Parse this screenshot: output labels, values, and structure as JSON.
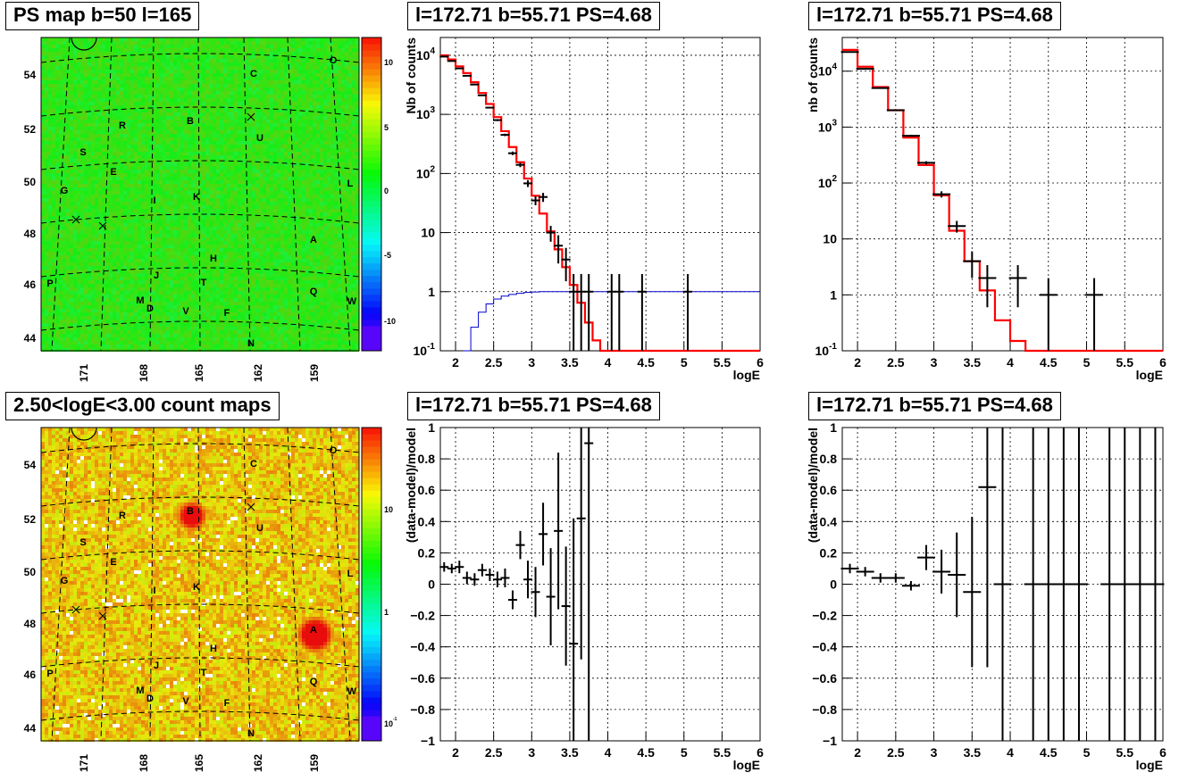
{
  "chart_data": [
    {
      "id": "tl",
      "type": "heatmap",
      "title": "PS map b=50 l=165",
      "mode": "significance",
      "xticks": [
        "171",
        "168",
        "165",
        "162",
        "159"
      ],
      "yticks": [
        "54",
        "52",
        "50",
        "48",
        "46",
        "44"
      ],
      "palette_ticks": [
        "10",
        "5",
        "0",
        "-5",
        "-10"
      ],
      "sources": [
        {
          "label": "C"
        },
        {
          "label": "O"
        },
        {
          "label": "B"
        },
        {
          "label": "R"
        },
        {
          "label": "U"
        },
        {
          "label": "S"
        },
        {
          "label": "E"
        },
        {
          "label": "L"
        },
        {
          "label": "G"
        },
        {
          "label": "I"
        },
        {
          "label": "K"
        },
        {
          "label": "A"
        },
        {
          "label": "H"
        },
        {
          "label": "J"
        },
        {
          "label": "T"
        },
        {
          "label": "P"
        },
        {
          "label": "Q"
        },
        {
          "label": "M"
        },
        {
          "label": "D"
        },
        {
          "label": "V"
        },
        {
          "label": "F"
        },
        {
          "label": "W"
        },
        {
          "label": "N"
        }
      ]
    },
    {
      "id": "tm",
      "type": "line",
      "title": "l=172.71 b=55.71 PS=4.68",
      "xlabel": "logE",
      "ylabel": "Nb of counts",
      "yscale": "log",
      "xlim": [
        1.8,
        6
      ],
      "ylim": [
        0.1,
        20000
      ],
      "xticks": [
        "2",
        "2.5",
        "3",
        "3.5",
        "4",
        "4.5",
        "5",
        "5.5",
        "6"
      ],
      "yticks": [
        "10^4",
        "10^3",
        "10^2",
        "10",
        "1",
        "10^-1"
      ],
      "data_points": [
        {
          "x": 1.85,
          "y": 9500,
          "err": 100
        },
        {
          "x": 1.95,
          "y": 8000,
          "err": 90
        },
        {
          "x": 2.05,
          "y": 6000,
          "err": 80
        },
        {
          "x": 2.15,
          "y": 4500,
          "err": 70
        },
        {
          "x": 2.25,
          "y": 3200,
          "err": 60
        },
        {
          "x": 2.35,
          "y": 2100,
          "err": 50
        },
        {
          "x": 2.45,
          "y": 1300,
          "err": 40
        },
        {
          "x": 2.55,
          "y": 800,
          "err": 30
        },
        {
          "x": 2.65,
          "y": 450,
          "err": 22
        },
        {
          "x": 2.75,
          "y": 220,
          "err": 15
        },
        {
          "x": 2.85,
          "y": 140,
          "err": 12
        },
        {
          "x": 2.95,
          "y": 68,
          "err": 9
        },
        {
          "x": 3.05,
          "y": 35,
          "err": 6
        },
        {
          "x": 3.15,
          "y": 40,
          "err": 7
        },
        {
          "x": 3.25,
          "y": 10,
          "err": 3
        },
        {
          "x": 3.35,
          "y": 6,
          "err": 3
        },
        {
          "x": 3.45,
          "y": 3.5,
          "err": 2
        },
        {
          "x": 3.55,
          "y": 1,
          "err": 0.99
        },
        {
          "x": 3.65,
          "y": 1,
          "err": 0.99
        },
        {
          "x": 3.75,
          "y": 1,
          "err": 0.99
        },
        {
          "x": 4.05,
          "y": 1,
          "err": 0.99
        },
        {
          "x": 4.15,
          "y": 1,
          "err": 0.99
        },
        {
          "x": 4.45,
          "y": 1,
          "err": 0.99
        },
        {
          "x": 5.05,
          "y": 1,
          "err": 0.99
        }
      ],
      "model": [
        [
          1.8,
          10000
        ],
        [
          1.9,
          8500
        ],
        [
          2.0,
          6500
        ],
        [
          2.1,
          5000
        ],
        [
          2.2,
          3500
        ],
        [
          2.3,
          2300
        ],
        [
          2.4,
          1500
        ],
        [
          2.5,
          900
        ],
        [
          2.6,
          520
        ],
        [
          2.7,
          280
        ],
        [
          2.8,
          155
        ],
        [
          2.9,
          82
        ],
        [
          3.0,
          42
        ],
        [
          3.1,
          21
        ],
        [
          3.2,
          10.5
        ],
        [
          3.3,
          5.2
        ],
        [
          3.4,
          2.6
        ],
        [
          3.5,
          1.3
        ],
        [
          3.6,
          0.65
        ],
        [
          3.7,
          0.3
        ],
        [
          3.8,
          0.15
        ],
        [
          3.9,
          0.1
        ],
        [
          6.0,
          0.1
        ]
      ],
      "efficiency": [
        [
          2.1,
          0.1
        ],
        [
          2.2,
          0.25
        ],
        [
          2.3,
          0.45
        ],
        [
          2.4,
          0.62
        ],
        [
          2.5,
          0.75
        ],
        [
          2.6,
          0.84
        ],
        [
          2.7,
          0.9
        ],
        [
          2.8,
          0.94
        ],
        [
          2.9,
          0.97
        ],
        [
          3.0,
          0.99
        ],
        [
          3.1,
          1.0
        ],
        [
          6.0,
          1.0
        ]
      ]
    },
    {
      "id": "tr",
      "type": "line",
      "title": "l=172.71 b=55.71 PS=4.68",
      "xlabel": "logE",
      "ylabel": "nb of counts",
      "yscale": "log",
      "xlim": [
        1.8,
        6
      ],
      "ylim": [
        0.1,
        40000
      ],
      "xticks": [
        "2",
        "2.5",
        "3",
        "3.5",
        "4",
        "4.5",
        "5",
        "5.5",
        "6"
      ],
      "yticks": [
        "10^4",
        "10^3",
        "10^2",
        "10",
        "1",
        "10^-1"
      ],
      "data_points": [
        {
          "x": 1.9,
          "y": 22000,
          "err": 150
        },
        {
          "x": 2.1,
          "y": 11000,
          "err": 100
        },
        {
          "x": 2.3,
          "y": 5000,
          "err": 70
        },
        {
          "x": 2.5,
          "y": 2000,
          "err": 45
        },
        {
          "x": 2.7,
          "y": 700,
          "err": 26
        },
        {
          "x": 2.9,
          "y": 230,
          "err": 15
        },
        {
          "x": 3.1,
          "y": 63,
          "err": 8
        },
        {
          "x": 3.3,
          "y": 17,
          "err": 4
        },
        {
          "x": 3.5,
          "y": 4,
          "err": 2
        },
        {
          "x": 3.7,
          "y": 2,
          "err": 1.4
        },
        {
          "x": 4.1,
          "y": 2,
          "err": 1.4
        },
        {
          "x": 4.5,
          "y": 1,
          "err": 0.99
        },
        {
          "x": 5.1,
          "y": 1,
          "err": 0.99
        }
      ],
      "model": [
        [
          1.8,
          24000
        ],
        [
          2.0,
          12000
        ],
        [
          2.2,
          5200
        ],
        [
          2.4,
          2000
        ],
        [
          2.6,
          650
        ],
        [
          2.8,
          210
        ],
        [
          3.0,
          60
        ],
        [
          3.2,
          14
        ],
        [
          3.4,
          4
        ],
        [
          3.6,
          1.2
        ],
        [
          3.8,
          0.35
        ],
        [
          4.0,
          0.15
        ],
        [
          4.2,
          0.1
        ],
        [
          6.0,
          0.1
        ]
      ]
    },
    {
      "id": "bl",
      "type": "heatmap",
      "title": "2.50<logE<3.00 count maps",
      "mode": "counts",
      "xticks": [
        "171",
        "168",
        "165",
        "162",
        "159"
      ],
      "yticks": [
        "54",
        "52",
        "50",
        "48",
        "46",
        "44"
      ],
      "palette_ticks": [
        "10",
        "1",
        "10^-1"
      ],
      "sources": [
        {
          "label": "C"
        },
        {
          "label": "O"
        },
        {
          "label": "B"
        },
        {
          "label": "R"
        },
        {
          "label": "U"
        },
        {
          "label": "S"
        },
        {
          "label": "E"
        },
        {
          "label": "L"
        },
        {
          "label": "G"
        },
        {
          "label": "I"
        },
        {
          "label": "K"
        },
        {
          "label": "A"
        },
        {
          "label": "H"
        },
        {
          "label": "J"
        },
        {
          "label": "T"
        },
        {
          "label": "P"
        },
        {
          "label": "Q"
        },
        {
          "label": "M"
        },
        {
          "label": "D"
        },
        {
          "label": "V"
        },
        {
          "label": "F"
        },
        {
          "label": "W"
        },
        {
          "label": "N"
        }
      ]
    },
    {
      "id": "bm",
      "type": "scatter",
      "title": "l=172.71 b=55.71 PS=4.68",
      "xlabel": "logE",
      "ylabel": "(data-model)/model",
      "xlim": [
        1.8,
        6
      ],
      "ylim": [
        -1,
        1
      ],
      "xticks": [
        "2",
        "2.5",
        "3",
        "3.5",
        "4",
        "4.5",
        "5",
        "5.5",
        "6"
      ],
      "yticks": [
        "1",
        "0.8",
        "0.6",
        "0.4",
        "0.2",
        "0",
        "-0.2",
        "-0.4",
        "-0.6",
        "-0.8",
        "-1"
      ],
      "data_points": [
        {
          "x": 1.85,
          "y": 0.11,
          "err": 0.03
        },
        {
          "x": 1.95,
          "y": 0.1,
          "err": 0.03
        },
        {
          "x": 2.05,
          "y": 0.11,
          "err": 0.04
        },
        {
          "x": 2.15,
          "y": 0.04,
          "err": 0.04
        },
        {
          "x": 2.25,
          "y": 0.03,
          "err": 0.04
        },
        {
          "x": 2.35,
          "y": 0.09,
          "err": 0.04
        },
        {
          "x": 2.45,
          "y": 0.06,
          "err": 0.04
        },
        {
          "x": 2.55,
          "y": 0.03,
          "err": 0.05
        },
        {
          "x": 2.65,
          "y": 0.04,
          "err": 0.06
        },
        {
          "x": 2.75,
          "y": -0.1,
          "err": 0.06
        },
        {
          "x": 2.85,
          "y": 0.25,
          "err": 0.09
        },
        {
          "x": 2.95,
          "y": 0.03,
          "err": 0.12
        },
        {
          "x": 3.05,
          "y": -0.05,
          "err": 0.16
        },
        {
          "x": 3.15,
          "y": 0.32,
          "err": 0.2
        },
        {
          "x": 3.25,
          "y": -0.08,
          "err": 0.31
        },
        {
          "x": 3.35,
          "y": 0.34,
          "err": 0.5
        },
        {
          "x": 3.45,
          "y": -0.14,
          "err": 0.38
        },
        {
          "x": 3.55,
          "y": -0.38,
          "err": 0.8
        },
        {
          "x": 3.65,
          "y": 0.42,
          "err": 0.9
        },
        {
          "x": 3.75,
          "y": 0.9,
          "err": 1.9
        }
      ]
    },
    {
      "id": "br",
      "type": "scatter",
      "title": "l=172.71 b=55.71 PS=4.68",
      "xlabel": "logE",
      "ylabel": "(data-model)/model",
      "xlim": [
        1.8,
        6
      ],
      "ylim": [
        -1,
        1
      ],
      "xticks": [
        "2",
        "2.5",
        "3",
        "3.5",
        "4",
        "4.5",
        "5",
        "5.5",
        "6"
      ],
      "yticks": [
        "1",
        "0.8",
        "0.6",
        "0.4",
        "0.2",
        "0",
        "-0.2",
        "-0.4",
        "-0.6",
        "-0.8",
        "-1"
      ],
      "data_points": [
        {
          "x": 1.9,
          "y": 0.1,
          "err": 0.03
        },
        {
          "x": 2.1,
          "y": 0.08,
          "err": 0.03
        },
        {
          "x": 2.3,
          "y": 0.04,
          "err": 0.03
        },
        {
          "x": 2.5,
          "y": 0.04,
          "err": 0.03
        },
        {
          "x": 2.7,
          "y": -0.01,
          "err": 0.03
        },
        {
          "x": 2.9,
          "y": 0.17,
          "err": 0.08
        },
        {
          "x": 3.1,
          "y": 0.08,
          "err": 0.14
        },
        {
          "x": 3.3,
          "y": 0.06,
          "err": 0.27
        },
        {
          "x": 3.5,
          "y": -0.05,
          "err": 0.48
        },
        {
          "x": 3.7,
          "y": 0.62,
          "err": 1.15
        },
        {
          "x": 3.9,
          "y": 0,
          "err": 2
        },
        {
          "x": 4.3,
          "y": 0,
          "err": 2
        },
        {
          "x": 4.5,
          "y": 0,
          "err": 2
        },
        {
          "x": 4.7,
          "y": 0,
          "err": 2
        },
        {
          "x": 4.9,
          "y": 0,
          "err": 2
        },
        {
          "x": 5.3,
          "y": 0,
          "err": 2
        },
        {
          "x": 5.5,
          "y": 0,
          "err": 2
        },
        {
          "x": 5.7,
          "y": 0,
          "err": 2
        },
        {
          "x": 5.9,
          "y": 0,
          "err": 2
        }
      ]
    }
  ]
}
